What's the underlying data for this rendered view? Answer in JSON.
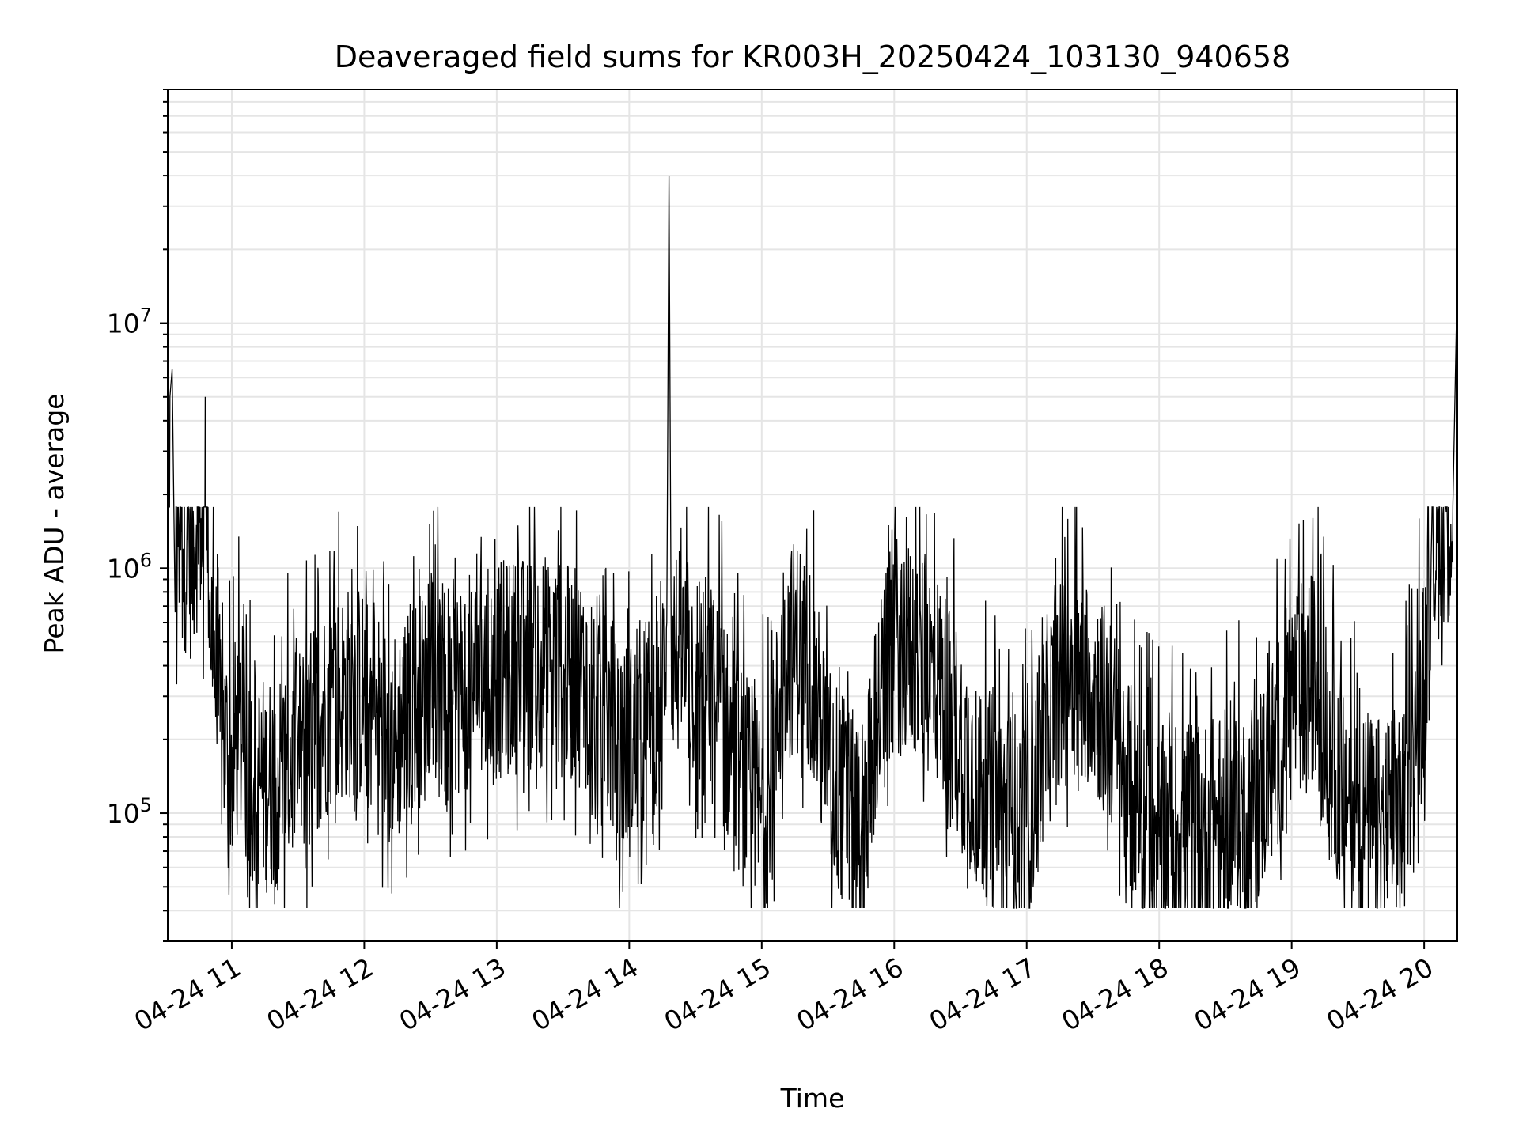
{
  "chart_data": {
    "type": "line",
    "title": "Deaveraged field sums for KR003H_20250424_103130_940658",
    "xlabel": "Time",
    "ylabel": "Peak ADU - average",
    "yscale": "log",
    "grid": true,
    "legend": "none",
    "colors": {
      "line": "#000000",
      "grid": "#e5e5e5",
      "axes": "#000000",
      "background": "#ffffff"
    },
    "xlim": [
      "2025-04-24 10:31",
      "2025-04-24 20:15"
    ],
    "ylim": [
      30000,
      90000000
    ],
    "x_ticks": [
      {
        "t": "2025-04-24 11:00",
        "label": "04-24 11"
      },
      {
        "t": "2025-04-24 12:00",
        "label": "04-24 12"
      },
      {
        "t": "2025-04-24 13:00",
        "label": "04-24 13"
      },
      {
        "t": "2025-04-24 14:00",
        "label": "04-24 14"
      },
      {
        "t": "2025-04-24 15:00",
        "label": "04-24 15"
      },
      {
        "t": "2025-04-24 16:00",
        "label": "04-24 16"
      },
      {
        "t": "2025-04-24 17:00",
        "label": "04-24 17"
      },
      {
        "t": "2025-04-24 18:00",
        "label": "04-24 18"
      },
      {
        "t": "2025-04-24 19:00",
        "label": "04-24 19"
      },
      {
        "t": "2025-04-24 20:00",
        "label": "04-24 20"
      }
    ],
    "y_ticks": [
      {
        "value": 100000,
        "base": "10",
        "exp": "5"
      },
      {
        "value": 1000000,
        "base": "10",
        "exp": "6"
      },
      {
        "value": 10000000,
        "base": "10",
        "exp": "7"
      }
    ],
    "series": [
      {
        "x": [
          "2025-04-24 10:31",
          "2025-04-24 10:32",
          "2025-04-24 10:33",
          "2025-04-24 10:34",
          "2025-04-24 10:36",
          "2025-04-24 10:38",
          "2025-04-24 10:40",
          "2025-04-24 10:42",
          "2025-04-24 10:44",
          "2025-04-24 10:46",
          "2025-04-24 10:47",
          "2025-04-24 10:48",
          "2025-04-24 10:50",
          "2025-04-24 10:52",
          "2025-04-24 10:54",
          "2025-04-24 10:56",
          "2025-04-24 10:58",
          "2025-04-24 11:00",
          "2025-04-24 11:03",
          "2025-04-24 11:06",
          "2025-04-24 11:10",
          "2025-04-24 11:15",
          "2025-04-24 11:20",
          "2025-04-24 11:25",
          "2025-04-24 11:30",
          "2025-04-24 11:35",
          "2025-04-24 11:40",
          "2025-04-24 11:45",
          "2025-04-24 11:50",
          "2025-04-24 11:55",
          "2025-04-24 12:00",
          "2025-04-24 12:05",
          "2025-04-24 12:10",
          "2025-04-24 12:15",
          "2025-04-24 12:20",
          "2025-04-24 12:30",
          "2025-04-24 12:40",
          "2025-04-24 12:50",
          "2025-04-24 13:00",
          "2025-04-24 13:10",
          "2025-04-24 13:20",
          "2025-04-24 13:30",
          "2025-04-24 13:40",
          "2025-04-24 13:45",
          "2025-04-24 13:50",
          "2025-04-24 13:55",
          "2025-04-24 14:00",
          "2025-04-24 14:05",
          "2025-04-24 14:10",
          "2025-04-24 14:15",
          "2025-04-24 14:17",
          "2025-04-24 14:18",
          "2025-04-24 14:19",
          "2025-04-24 14:25",
          "2025-04-24 14:30",
          "2025-04-24 14:40",
          "2025-04-24 14:45",
          "2025-04-24 14:50",
          "2025-04-24 14:55",
          "2025-04-24 15:00",
          "2025-04-24 15:05",
          "2025-04-24 15:10",
          "2025-04-24 15:20",
          "2025-04-24 15:30",
          "2025-04-24 15:40",
          "2025-04-24 15:45",
          "2025-04-24 15:50",
          "2025-04-24 16:00",
          "2025-04-24 16:10",
          "2025-04-24 16:20",
          "2025-04-24 16:30",
          "2025-04-24 16:40",
          "2025-04-24 16:50",
          "2025-04-24 17:00",
          "2025-04-24 17:10",
          "2025-04-24 17:20",
          "2025-04-24 17:30",
          "2025-04-24 17:40",
          "2025-04-24 17:50",
          "2025-04-24 18:00",
          "2025-04-24 18:10",
          "2025-04-24 18:20",
          "2025-04-24 18:30",
          "2025-04-24 18:40",
          "2025-04-24 18:50",
          "2025-04-24 19:00",
          "2025-04-24 19:10",
          "2025-04-24 19:20",
          "2025-04-24 19:30",
          "2025-04-24 19:40",
          "2025-04-24 19:50",
          "2025-04-24 19:55",
          "2025-04-24 20:00",
          "2025-04-24 20:03",
          "2025-04-24 20:06",
          "2025-04-24 20:10",
          "2025-04-24 20:13",
          "2025-04-24 20:15"
        ],
        "y": [
          700000,
          5000000,
          6500000,
          1200000,
          1500000,
          1200000,
          1300000,
          1100000,
          1500000,
          1600000,
          1400000,
          5000000,
          700000,
          450000,
          250000,
          200000,
          180000,
          160000,
          220000,
          170000,
          140000,
          130000,
          140000,
          150000,
          170000,
          200000,
          250000,
          280000,
          300000,
          320000,
          300000,
          250000,
          220000,
          200000,
          280000,
          300000,
          320000,
          350000,
          380000,
          400000,
          420000,
          380000,
          350000,
          300000,
          250000,
          200000,
          180000,
          200000,
          250000,
          350000,
          600000,
          40000000,
          500000,
          400000,
          380000,
          300000,
          200000,
          150000,
          120000,
          100000,
          150000,
          450000,
          500000,
          150000,
          100000,
          80000,
          200000,
          500000,
          450000,
          350000,
          200000,
          120000,
          100000,
          90000,
          250000,
          400000,
          350000,
          200000,
          100000,
          80000,
          90000,
          85000,
          95000,
          100000,
          150000,
          300000,
          350000,
          150000,
          100000,
          90000,
          100000,
          200000,
          350000,
          800000,
          1600000,
          1700000,
          1800000,
          16000000
        ]
      }
    ]
  }
}
